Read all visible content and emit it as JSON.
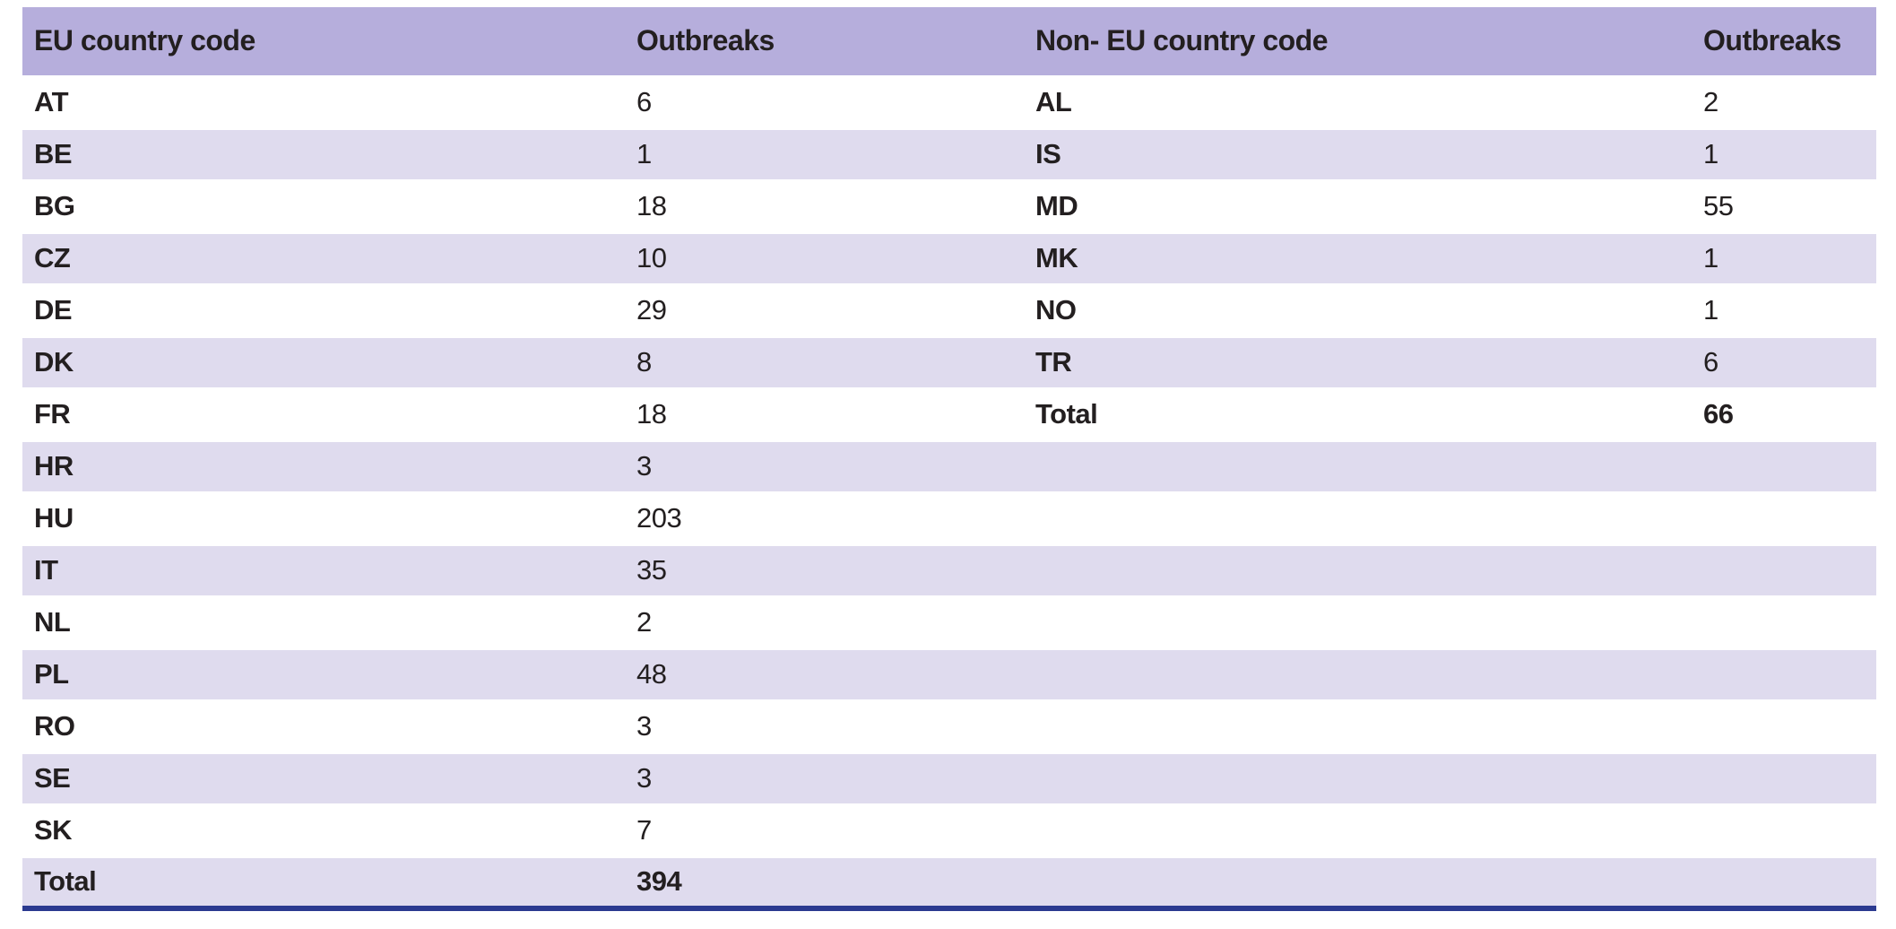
{
  "colors": {
    "header_bg": "#b6aedc",
    "stripe_bg": "#dfdbee",
    "bottom_rule": "#2b3a90",
    "text": "#231f20"
  },
  "table": {
    "eu": {
      "code_header": "EU country code",
      "outbreaks_header": "Outbreaks",
      "rows": [
        {
          "code": "AT",
          "outbreaks": "6"
        },
        {
          "code": "BE",
          "outbreaks": "1"
        },
        {
          "code": "BG",
          "outbreaks": "18"
        },
        {
          "code": "CZ",
          "outbreaks": "10"
        },
        {
          "code": "DE",
          "outbreaks": "29"
        },
        {
          "code": "DK",
          "outbreaks": "8"
        },
        {
          "code": "FR",
          "outbreaks": "18"
        },
        {
          "code": "HR",
          "outbreaks": "3"
        },
        {
          "code": "HU",
          "outbreaks": "203"
        },
        {
          "code": "IT",
          "outbreaks": "35"
        },
        {
          "code": "NL",
          "outbreaks": "2"
        },
        {
          "code": "PL",
          "outbreaks": "48"
        },
        {
          "code": "RO",
          "outbreaks": "3"
        },
        {
          "code": "SE",
          "outbreaks": "3"
        },
        {
          "code": "SK",
          "outbreaks": "7"
        }
      ],
      "total_label": "Total",
      "total": "394"
    },
    "non_eu": {
      "code_header": "Non- EU country code",
      "outbreaks_header": "Outbreaks",
      "rows": [
        {
          "code": "AL",
          "outbreaks": "2"
        },
        {
          "code": "IS",
          "outbreaks": "1"
        },
        {
          "code": "MD",
          "outbreaks": "55"
        },
        {
          "code": "MK",
          "outbreaks": "1"
        },
        {
          "code": "NO",
          "outbreaks": "1"
        },
        {
          "code": "TR",
          "outbreaks": "6"
        }
      ],
      "total_label": "Total",
      "total": "66"
    }
  }
}
